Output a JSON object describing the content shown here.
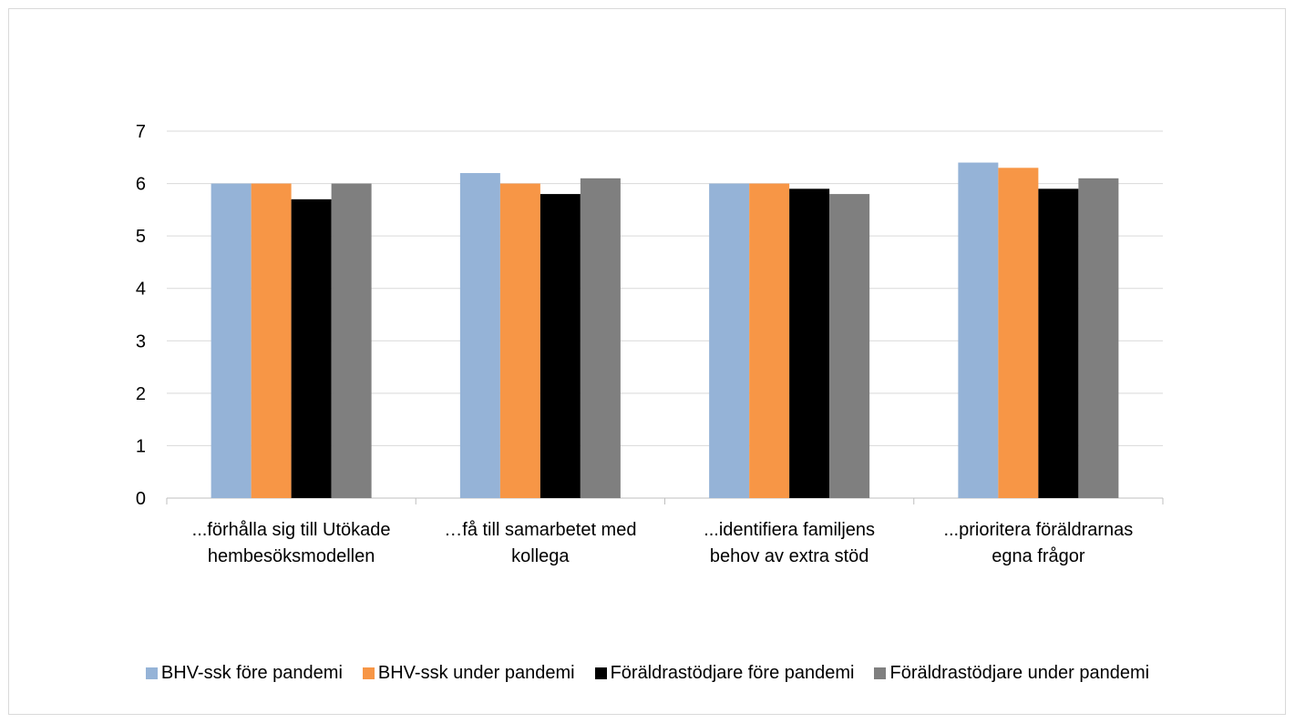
{
  "chart_data": {
    "type": "bar",
    "categories": [
      [
        "...förhålla sig till Utökade",
        "hembesöksmodellen"
      ],
      [
        "…få till samarbetet med",
        "kollega"
      ],
      [
        "...identifiera familjens",
        "behov av extra stöd"
      ],
      [
        "...prioritera föräldrarnas",
        "egna frågor"
      ]
    ],
    "series": [
      {
        "name": "BHV-ssk före pandemi",
        "color": "#95b3d7",
        "values": [
          6.0,
          6.2,
          6.0,
          6.4
        ]
      },
      {
        "name": "BHV-ssk under pandemi",
        "color": "#f79646",
        "values": [
          6.0,
          6.0,
          6.0,
          6.3
        ]
      },
      {
        "name": "Föräldrastödjare före pandemi",
        "color": "#000000",
        "values": [
          5.7,
          5.8,
          5.9,
          5.9
        ]
      },
      {
        "name": "Föräldrastödjare under pandemi",
        "color": "#7f7f7f",
        "values": [
          6.0,
          6.1,
          5.8,
          6.1
        ]
      }
    ],
    "y_ticks": [
      "0",
      "1",
      "2",
      "3",
      "4",
      "5",
      "6",
      "7"
    ],
    "ylim": [
      0,
      7
    ],
    "grid": true,
    "legend_position": "bottom"
  }
}
